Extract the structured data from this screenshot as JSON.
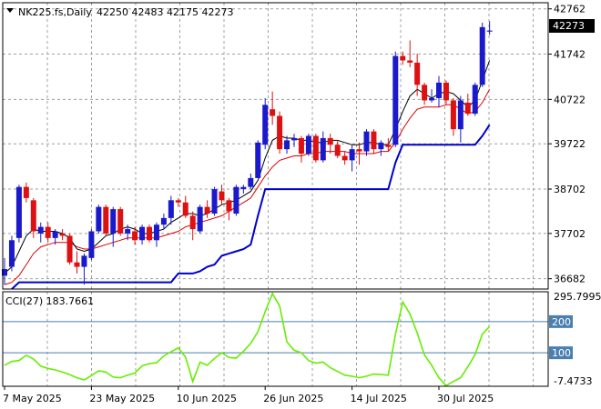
{
  "chart_data": [
    {
      "type": "candlestick",
      "symbol": "NK225.fs,Daily",
      "ohlc_header": "42250 42483 42175 42273",
      "last_price_label": "42273",
      "y_ticks": [
        42762,
        41742,
        40722,
        39722,
        38702,
        37702,
        36682
      ],
      "ylim": [
        36450,
        42900
      ],
      "x_labels": [
        "7 May 2025",
        "23 May 2025",
        "10 Jun 2025",
        "26 Jun 2025",
        "14 Jul 2025",
        "30 Jul 2025"
      ],
      "x_label_index": [
        0,
        12,
        24,
        36,
        48,
        60
      ],
      "candles": [
        [
          36750,
          37150,
          36550,
          36900
        ],
        [
          36950,
          37650,
          36850,
          37550
        ],
        [
          37600,
          38800,
          37500,
          38750
        ],
        [
          38750,
          38850,
          38400,
          38500
        ],
        [
          38450,
          38500,
          37600,
          37750
        ],
        [
          37700,
          37950,
          37500,
          37850
        ],
        [
          37850,
          37950,
          37500,
          37600
        ],
        [
          37600,
          37800,
          37450,
          37750
        ],
        [
          37700,
          37800,
          37550,
          37650
        ],
        [
          37650,
          37700,
          37000,
          37050
        ],
        [
          37050,
          37300,
          36800,
          36950
        ],
        [
          36950,
          37250,
          36550,
          37200
        ],
        [
          37150,
          37800,
          37100,
          37750
        ],
        [
          37750,
          38350,
          37700,
          38300
        ],
        [
          38300,
          38350,
          37650,
          37700
        ],
        [
          37700,
          38300,
          37400,
          38250
        ],
        [
          38250,
          38300,
          37650,
          37700
        ],
        [
          37700,
          37900,
          37550,
          37800
        ],
        [
          37750,
          37850,
          37450,
          37550
        ],
        [
          37550,
          37900,
          37450,
          37850
        ],
        [
          37850,
          37900,
          37500,
          37550
        ],
        [
          37550,
          37950,
          37400,
          37900
        ],
        [
          37900,
          38150,
          37800,
          38050
        ],
        [
          38050,
          38550,
          37900,
          38450
        ],
        [
          38450,
          38500,
          38300,
          38400
        ],
        [
          38400,
          38550,
          38050,
          38100
        ],
        [
          38100,
          38200,
          37550,
          37800
        ],
        [
          37750,
          38350,
          37700,
          38300
        ],
        [
          38300,
          38450,
          38050,
          38150
        ],
        [
          38150,
          38750,
          38100,
          38700
        ],
        [
          38650,
          38800,
          38350,
          38450
        ],
        [
          38450,
          38500,
          38000,
          38200
        ],
        [
          38150,
          38800,
          38100,
          38750
        ],
        [
          38700,
          38800,
          38600,
          38750
        ],
        [
          38750,
          39050,
          38700,
          38950
        ],
        [
          38950,
          39800,
          38950,
          39750
        ],
        [
          39700,
          40750,
          39600,
          40600
        ],
        [
          40500,
          40900,
          40150,
          40350
        ],
        [
          40350,
          40450,
          39500,
          39600
        ],
        [
          39600,
          39900,
          39500,
          39800
        ],
        [
          39800,
          39950,
          39650,
          39850
        ],
        [
          39850,
          39900,
          39300,
          39500
        ],
        [
          39500,
          39950,
          39450,
          39900
        ],
        [
          39900,
          39950,
          39300,
          39350
        ],
        [
          39350,
          40000,
          39300,
          39850
        ],
        [
          39850,
          39950,
          39500,
          39700
        ],
        [
          39700,
          39800,
          39400,
          39450
        ],
        [
          39450,
          39550,
          39250,
          39350
        ],
        [
          39350,
          39700,
          39100,
          39600
        ],
        [
          39600,
          39750,
          39250,
          39550
        ],
        [
          39550,
          40050,
          39450,
          40000
        ],
        [
          40000,
          40050,
          39500,
          39600
        ],
        [
          39600,
          39800,
          39450,
          39750
        ],
        [
          39700,
          39850,
          39550,
          39650
        ],
        [
          39700,
          41800,
          39650,
          41700
        ],
        [
          41700,
          41800,
          41500,
          41600
        ],
        [
          41600,
          42050,
          41450,
          41550
        ],
        [
          41550,
          41750,
          40800,
          41050
        ],
        [
          41050,
          41100,
          40600,
          40700
        ],
        [
          40700,
          40950,
          40650,
          40750
        ],
        [
          40750,
          41250,
          40550,
          41100
        ],
        [
          41100,
          41150,
          40600,
          40700
        ],
        [
          40700,
          40750,
          39900,
          40050
        ],
        [
          40050,
          40800,
          39750,
          40700
        ],
        [
          40650,
          40850,
          40350,
          40400
        ],
        [
          40400,
          41100,
          40350,
          41050
        ],
        [
          41050,
          42450,
          41000,
          42350
        ],
        [
          42250,
          42483,
          42175,
          42273
        ]
      ],
      "ma_black": [
        36800,
        36950,
        37300,
        37650,
        37800,
        37750,
        37750,
        37750,
        37700,
        37600,
        37350,
        37300,
        37350,
        37500,
        37650,
        37700,
        37800,
        37850,
        37800,
        37700,
        37700,
        37750,
        37800,
        37950,
        38050,
        38150,
        38150,
        38100,
        38150,
        38250,
        38350,
        38400,
        38450,
        38550,
        38650,
        38900,
        39400,
        39800,
        39900,
        39850,
        39850,
        39800,
        39800,
        39750,
        39750,
        39800,
        39800,
        39750,
        39700,
        39700,
        39750,
        39750,
        39700,
        39700,
        40050,
        40450,
        40800,
        40950,
        40850,
        40750,
        40850,
        40900,
        40850,
        40700,
        40550,
        40700,
        41150,
        41600
      ],
      "ma_red": [
        36550,
        36600,
        36750,
        37000,
        37250,
        37400,
        37450,
        37500,
        37500,
        37500,
        37400,
        37350,
        37350,
        37400,
        37450,
        37500,
        37550,
        37600,
        37600,
        37600,
        37600,
        37600,
        37650,
        37700,
        37750,
        37850,
        37900,
        37950,
        38000,
        38050,
        38100,
        38200,
        38300,
        38400,
        38500,
        38750,
        39000,
        39200,
        39350,
        39400,
        39450,
        39450,
        39500,
        39500,
        39550,
        39550,
        39550,
        39550,
        39500,
        39500,
        39500,
        39500,
        39550,
        39550,
        39750,
        40050,
        40300,
        40500,
        40550,
        40550,
        40550,
        40600,
        40600,
        40500,
        40400,
        40450,
        40650,
        40950
      ],
      "trailing_stop": [
        null,
        36450,
        36600,
        36600,
        36600,
        36600,
        36600,
        36600,
        36600,
        36600,
        36600,
        36600,
        36600,
        36600,
        36600,
        36600,
        36600,
        36600,
        36600,
        36600,
        36600,
        36600,
        36600,
        36600,
        36800,
        36800,
        36800,
        36850,
        36950,
        37000,
        37200,
        37250,
        37300,
        37350,
        37450,
        38100,
        38700,
        38700,
        38700,
        38700,
        38700,
        38700,
        38700,
        38700,
        38700,
        38700,
        38700,
        38700,
        38700,
        38700,
        38700,
        38700,
        38700,
        38700,
        39300,
        39700,
        39700,
        39700,
        39700,
        39700,
        39700,
        39700,
        39700,
        39700,
        39700,
        39700,
        39900,
        40150
      ]
    },
    {
      "type": "line",
      "indicator_label": "CCI(27) 183.7661",
      "y_ticks_labels": [
        "295.7995",
        "200",
        "100",
        "-7.4733"
      ],
      "levels": [
        200,
        100
      ],
      "ylim": [
        -7.4733,
        295.7995
      ],
      "values": [
        60,
        72,
        75,
        92,
        80,
        57,
        50,
        45,
        38,
        30,
        20,
        13,
        27,
        42,
        38,
        22,
        20,
        28,
        35,
        58,
        65,
        68,
        90,
        103,
        116,
        86,
        8,
        70,
        60,
        82,
        100,
        85,
        83,
        105,
        130,
        168,
        232,
        290,
        250,
        135,
        108,
        100,
        75,
        67,
        70,
        52,
        40,
        28,
        25,
        20,
        25,
        32,
        30,
        28,
        160,
        263,
        225,
        163,
        93,
        60,
        20,
        -5,
        8,
        20,
        55,
        95,
        160,
        184
      ]
    }
  ]
}
